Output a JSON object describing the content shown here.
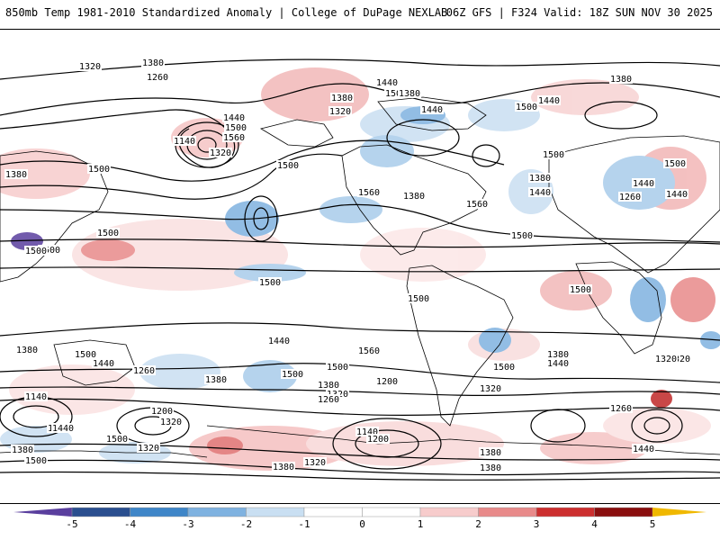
{
  "header": {
    "title_left": "850mb Temp 1981-2010 Standardized Anomaly | College of DuPage NEXLAB",
    "title_right": "06Z GFS | F324 Valid: 18Z SUN NOV 30 2025"
  },
  "colorbar": {
    "tick_labels": [
      "-5",
      "-4",
      "-3",
      "-2",
      "-1",
      "0",
      "1",
      "2",
      "3",
      "4",
      "5"
    ],
    "colors": [
      "#5a3f9e",
      "#2b4f8f",
      "#3f86c8",
      "#7fb2e0",
      "#c9dff2",
      "#ffffff",
      "#ffffff",
      "#f7cccc",
      "#e88a8a",
      "#cc2f2f",
      "#8a0f0f",
      "#f0b800"
    ]
  },
  "map": {
    "contour_labels": [
      {
        "text": "1380"
      },
      {
        "text": "1320"
      },
      {
        "text": "1260"
      },
      {
        "text": "1380"
      },
      {
        "text": "1140"
      },
      {
        "text": "1320"
      },
      {
        "text": "1440"
      },
      {
        "text": "1500"
      },
      {
        "text": "1560"
      },
      {
        "text": "1380"
      },
      {
        "text": "1440"
      },
      {
        "text": "1500"
      },
      {
        "text": "1560"
      },
      {
        "text": "1380"
      },
      {
        "text": "1440"
      },
      {
        "text": "1320"
      },
      {
        "text": "1380"
      },
      {
        "text": "1500"
      },
      {
        "text": "1440"
      },
      {
        "text": "1380"
      },
      {
        "text": "1500"
      },
      {
        "text": "1560"
      },
      {
        "text": "1380"
      },
      {
        "text": "1500"
      },
      {
        "text": "1440"
      },
      {
        "text": "1500"
      },
      {
        "text": "1500"
      },
      {
        "text": "1500"
      },
      {
        "text": "1500"
      },
      {
        "text": "1500"
      },
      {
        "text": "1500"
      },
      {
        "text": "1440"
      },
      {
        "text": "1380"
      },
      {
        "text": "1500"
      },
      {
        "text": "1440"
      },
      {
        "text": "1260"
      },
      {
        "text": "1380"
      },
      {
        "text": "1320"
      },
      {
        "text": "1140"
      },
      {
        "text": "1260"
      },
      {
        "text": "1200"
      },
      {
        "text": "1320"
      },
      {
        "text": "1440"
      },
      {
        "text": "1500"
      },
      {
        "text": "1380"
      },
      {
        "text": "1500"
      },
      {
        "text": "1560"
      },
      {
        "text": "1500"
      },
      {
        "text": "1440"
      },
      {
        "text": "1380"
      },
      {
        "text": "1320"
      },
      {
        "text": "1260"
      },
      {
        "text": "1200"
      },
      {
        "text": "1140"
      },
      {
        "text": "1200"
      },
      {
        "text": "1380"
      },
      {
        "text": "1320"
      },
      {
        "text": "1320"
      },
      {
        "text": "1260"
      },
      {
        "text": "1380"
      },
      {
        "text": "1440"
      },
      {
        "text": "1500"
      },
      {
        "text": "1500"
      },
      {
        "text": "1440"
      },
      {
        "text": "1380"
      },
      {
        "text": "1320"
      },
      {
        "text": "1260"
      },
      {
        "text": "1380"
      },
      {
        "text": "1380"
      },
      {
        "text": "1500"
      },
      {
        "text": "1440"
      },
      {
        "text": "1320"
      },
      {
        "text": "1380"
      },
      {
        "text": "1500"
      },
      {
        "text": "1440"
      },
      {
        "text": "1500"
      }
    ]
  }
}
